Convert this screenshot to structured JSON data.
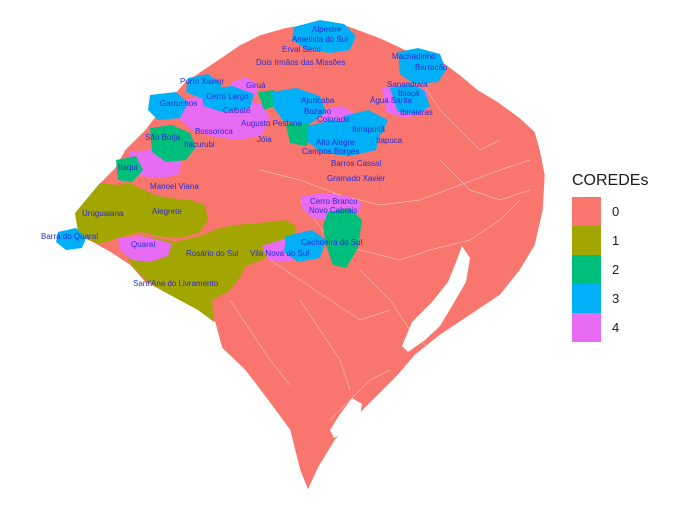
{
  "legend": {
    "title": "COREDEs",
    "items": [
      {
        "label": "0",
        "color": "#F8766D"
      },
      {
        "label": "1",
        "color": "#A3A500"
      },
      {
        "label": "2",
        "color": "#00BF7D"
      },
      {
        "label": "3",
        "color": "#00B0F6"
      },
      {
        "label": "4",
        "color": "#E76BF3"
      }
    ]
  },
  "municipalities": [
    "Alpestre",
    "Ametista do Sul",
    "Erval Seco",
    "Dois Irmãos das Missões",
    "Machadinho",
    "Barracão",
    "Sananduva",
    "Ibiaçá",
    "Água Santa",
    "Ibiraiaras",
    "Porto Xavier",
    "Giruá",
    "Cerro Largo",
    "Garruchos",
    "Caibaté",
    "Ajuricaba",
    "Bozano",
    "Augusto Pestana",
    "Colorado",
    "São Borja",
    "Bossoroca",
    "Ibirapuitã",
    "Itacurubi",
    "Jóia",
    "Alto Alegre",
    "Itapuca",
    "Campos Borges",
    "Itaqui",
    "Barros Cassal",
    "Gramado Xavier",
    "Manoel Viana",
    "Cerro Branco",
    "Uruguaiana",
    "Alegrete",
    "Novo Cabrais",
    "Barra do Quaraí",
    "Cachoeira do Sul",
    "Quaraí",
    "Rosário do Sul",
    "Vila Nova do Sul",
    "Sant'Ana do Livramento"
  ]
}
